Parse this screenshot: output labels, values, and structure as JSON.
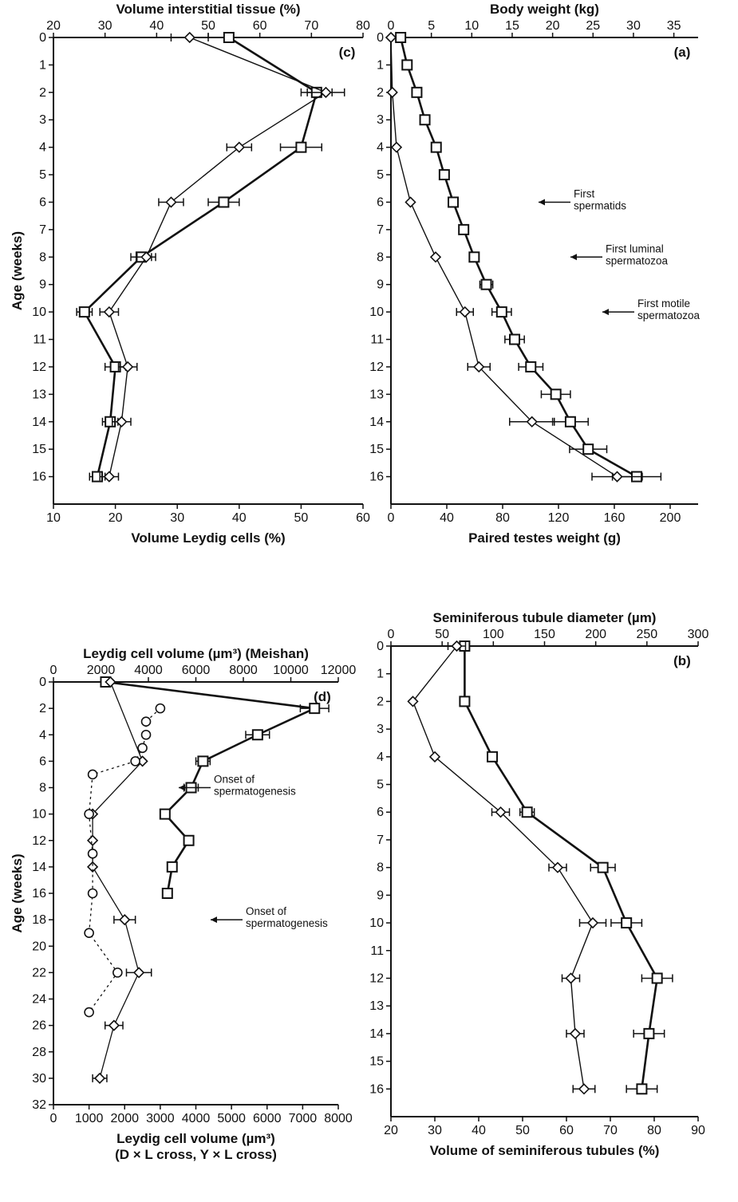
{
  "chart_data": [
    {
      "panel": "(a)",
      "type": "line",
      "orientation": "rotated-90-clockwise",
      "xlabel": "",
      "x_ticks": [
        0,
        1,
        2,
        3,
        4,
        5,
        6,
        7,
        8,
        9,
        10,
        11,
        12,
        13,
        14,
        15,
        16
      ],
      "xlim": [
        0,
        17
      ],
      "top_axis": {
        "label": "Body weight (kg)",
        "ticks": [
          0,
          5,
          10,
          15,
          20,
          25,
          30,
          35
        ],
        "lim": [
          0,
          38
        ]
      },
      "bottom_axis": {
        "label": "Paired testes weight (g)",
        "ticks": [
          0,
          40,
          80,
          120,
          160,
          200
        ],
        "lim": [
          0,
          220
        ]
      },
      "series": [
        {
          "axis": "top",
          "marker": "square",
          "stroke_width": 2.6,
          "x": [
            0,
            1,
            2,
            3,
            4,
            5,
            6,
            7,
            8,
            9,
            10,
            11,
            12,
            13,
            14,
            15,
            16
          ],
          "y": [
            1.2,
            2.0,
            3.2,
            4.2,
            5.6,
            6.6,
            7.7,
            9.0,
            10.3,
            11.8,
            13.7,
            15.3,
            17.3,
            20.4,
            22.2,
            24.4,
            30.4
          ],
          "err": [
            0,
            0,
            0,
            0,
            0,
            0,
            0,
            0,
            0,
            0.8,
            1.2,
            1.2,
            1.5,
            1.8,
            2.2,
            2.3,
            3.0
          ]
        },
        {
          "axis": "bottom",
          "marker": "diamond",
          "stroke_width": 1.4,
          "x": [
            0,
            2,
            4,
            6,
            8,
            10,
            12,
            14,
            16
          ],
          "y": [
            0,
            1,
            4,
            14,
            32,
            53,
            63,
            101,
            162
          ],
          "err": [
            0,
            0,
            0,
            0,
            0,
            6,
            8,
            16,
            18
          ]
        }
      ],
      "annotations": [
        {
          "lines": [
            "First",
            "spermatids"
          ],
          "x": 6
        },
        {
          "lines": [
            "First luminal",
            "spermatozoa"
          ],
          "x": 8
        },
        {
          "lines": [
            "First motile",
            "spermatozoa"
          ],
          "x": 10
        }
      ]
    },
    {
      "panel": "(b)",
      "type": "line",
      "orientation": "rotated-90-clockwise",
      "xlabel": "",
      "x_ticks": [
        0,
        1,
        2,
        3,
        4,
        5,
        6,
        7,
        8,
        9,
        10,
        11,
        12,
        13,
        14,
        15,
        16
      ],
      "xlim": [
        0,
        17
      ],
      "top_axis": {
        "label": "Seminiferous tubule diameter (µm)",
        "ticks": [
          0,
          50,
          100,
          150,
          200,
          250,
          300
        ],
        "lim": [
          0,
          300
        ]
      },
      "bottom_axis": {
        "label": "Volume of seminiferous tubules (%)",
        "ticks": [
          20,
          30,
          40,
          50,
          60,
          70,
          80,
          90
        ],
        "lim": [
          20,
          90
        ]
      },
      "series": [
        {
          "axis": "top",
          "marker": "square",
          "stroke_width": 2.6,
          "x": [
            0,
            2,
            4,
            6,
            8,
            10,
            12,
            14,
            16
          ],
          "y": [
            72,
            72,
            99,
            133,
            207,
            230,
            260,
            252,
            245
          ],
          "err": [
            0,
            0,
            0,
            7,
            12,
            15,
            15,
            15,
            15
          ]
        },
        {
          "axis": "bottom",
          "marker": "diamond",
          "stroke_width": 1.4,
          "x": [
            0,
            2,
            4,
            6,
            8,
            10,
            12,
            14,
            16
          ],
          "y": [
            35,
            25,
            30,
            45,
            58,
            66,
            61,
            62,
            64
          ],
          "err": [
            2,
            0,
            0,
            2,
            2,
            3,
            2,
            2,
            2.5
          ]
        }
      ]
    },
    {
      "panel": "(c)",
      "type": "line",
      "orientation": "rotated-90-clockwise",
      "xlabel": "Age (weeks)",
      "x_ticks": [
        0,
        1,
        2,
        3,
        4,
        5,
        6,
        7,
        8,
        9,
        10,
        11,
        12,
        13,
        14,
        15,
        16
      ],
      "xlim": [
        0,
        17
      ],
      "top_axis": {
        "label": "Volume interstitial tissue (%)",
        "ticks": [
          20,
          30,
          40,
          50,
          60,
          70,
          80
        ],
        "lim": [
          20,
          80
        ]
      },
      "bottom_axis": {
        "label": "Volume Leydig cells (%)",
        "ticks": [
          10,
          20,
          30,
          40,
          50,
          60
        ],
        "lim": [
          10,
          60
        ]
      },
      "series": [
        {
          "axis": "top",
          "marker": "square",
          "stroke_width": 2.6,
          "x": [
            0,
            2,
            4,
            6,
            8,
            10,
            12,
            14,
            16
          ],
          "y": [
            54,
            71,
            68,
            53,
            37,
            26,
            32,
            31,
            28.5
          ],
          "err": [
            0,
            3,
            4,
            3,
            2,
            1.5,
            2,
            1.5,
            1.5
          ]
        },
        {
          "axis": "bottom",
          "marker": "diamond",
          "stroke_width": 1.4,
          "x": [
            0,
            2,
            4,
            6,
            8,
            10,
            12,
            14,
            16
          ],
          "y": [
            32,
            54,
            40,
            29,
            25,
            19,
            22,
            21,
            19
          ],
          "err": [
            3,
            3,
            2,
            2,
            1.5,
            1.5,
            1.5,
            1.5,
            1.5
          ]
        }
      ]
    },
    {
      "panel": "(d)",
      "type": "line",
      "orientation": "rotated-90-clockwise",
      "xlabel": "Age (weeks)",
      "x_ticks": [
        0,
        2,
        4,
        6,
        8,
        10,
        12,
        14,
        16,
        18,
        20,
        22,
        24,
        26,
        28,
        30,
        32
      ],
      "xlim": [
        0,
        32
      ],
      "top_axis": {
        "label": "Leydig cell volume (µm³) (Meishan)",
        "ticks": [
          0,
          2000,
          4000,
          6000,
          8000,
          10000,
          12000
        ],
        "lim": [
          0,
          12000
        ]
      },
      "bottom_axis": {
        "label": "Leydig cell volume (µm³)",
        "label2": "(D × L cross, Y × L cross)",
        "ticks": [
          0,
          1000,
          2000,
          3000,
          4000,
          5000,
          6000,
          7000,
          8000
        ],
        "lim": [
          0,
          8000
        ]
      },
      "series": [
        {
          "axis": "top",
          "marker": "square",
          "stroke_width": 2.6,
          "x": [
            0,
            2,
            4,
            6,
            8,
            10,
            12,
            14,
            16
          ],
          "y": [
            2200,
            11000,
            8600,
            6300,
            5800,
            4700,
            5700,
            5000,
            4800
          ],
          "err": [
            0,
            600,
            500,
            300,
            300,
            0,
            200,
            0,
            0
          ]
        },
        {
          "axis": "bottom",
          "marker": "diamond",
          "stroke_width": 1.3,
          "x": [
            0,
            6,
            10,
            12,
            14,
            18,
            22,
            26,
            30
          ],
          "y": [
            1600,
            2500,
            1100,
            1100,
            1100,
            2000,
            2400,
            1700,
            1300
          ],
          "err": [
            0,
            0,
            0,
            0,
            0,
            300,
            350,
            250,
            200
          ]
        },
        {
          "axis": "bottom",
          "marker": "circle",
          "dashed": true,
          "stroke_width": 1.3,
          "x": [
            2,
            3,
            4,
            5,
            6,
            7,
            10,
            13,
            16,
            19,
            22,
            25
          ],
          "y": [
            3000,
            2600,
            2600,
            2500,
            2300,
            1100,
            1000,
            1100,
            1100,
            1000,
            1800,
            1000
          ],
          "err": [
            0,
            0,
            0,
            0,
            0,
            0,
            0,
            0,
            0,
            0,
            0,
            0
          ]
        }
      ],
      "annotations": [
        {
          "lines": [
            "Onset of",
            "spermatogenesis"
          ],
          "x": 8
        },
        {
          "lines": [
            "Onset of",
            "spermatogenesis"
          ],
          "x": 18
        }
      ]
    }
  ]
}
